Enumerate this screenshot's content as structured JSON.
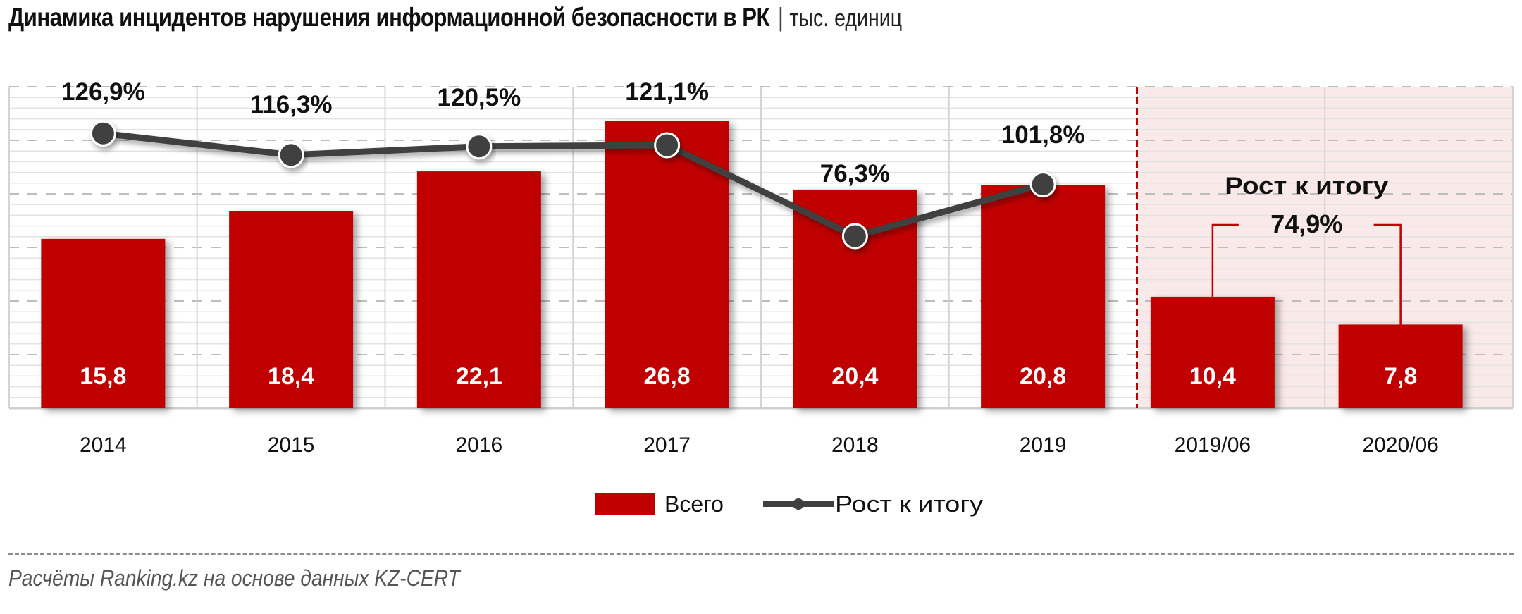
{
  "header": {
    "title": "Динамика инцидентов нарушения информационной безопасности в РК",
    "separator": "|",
    "unit": "тыс. единиц"
  },
  "colors": {
    "bar": "#c00000",
    "line": "#404040",
    "highlight_bg": "#f9e9e9",
    "divider": "#c00000",
    "grid": "#d0d0d0"
  },
  "legend": {
    "items": [
      {
        "label": "Всего",
        "type": "bar"
      },
      {
        "label": "Рост к итогу",
        "type": "line"
      }
    ]
  },
  "annotation": {
    "title": "Рост к итогу",
    "value": "74,9%"
  },
  "source": "Расчёты Ranking.kz на основе данных  KZ-CERT",
  "chart_data": {
    "type": "bar",
    "title": "Динамика инцидентов нарушения информационной безопасности в РК | тыс. единиц",
    "xlabel": "",
    "ylabel": "",
    "categories": [
      "2014",
      "2015",
      "2016",
      "2017",
      "2018",
      "2019",
      "2019/06",
      "2020/06"
    ],
    "series": [
      {
        "name": "Всего",
        "type": "bar",
        "values": [
          15.8,
          18.4,
          22.1,
          26.8,
          20.4,
          20.8,
          10.4,
          7.8
        ],
        "labels": [
          "15,8",
          "18,4",
          "22,1",
          "26,8",
          "20,4",
          "20,8",
          "10,4",
          "7,8"
        ]
      },
      {
        "name": "Рост к итогу",
        "type": "line",
        "values": [
          126.9,
          116.3,
          120.5,
          121.1,
          76.3,
          101.8,
          null,
          null
        ],
        "labels": [
          "126,9%",
          "116,3%",
          "120,5%",
          "121,1%",
          "76,3%",
          "101,8%",
          "",
          ""
        ]
      }
    ],
    "ylim": [
      0,
      30
    ],
    "grid": true,
    "legend_position": "bottom",
    "highlighted_categories": [
      "2019/06",
      "2020/06"
    ],
    "annotations": [
      {
        "text": "Рост к итогу 74,9%",
        "between": [
          "2019/06",
          "2020/06"
        ],
        "value": 74.9
      }
    ]
  }
}
